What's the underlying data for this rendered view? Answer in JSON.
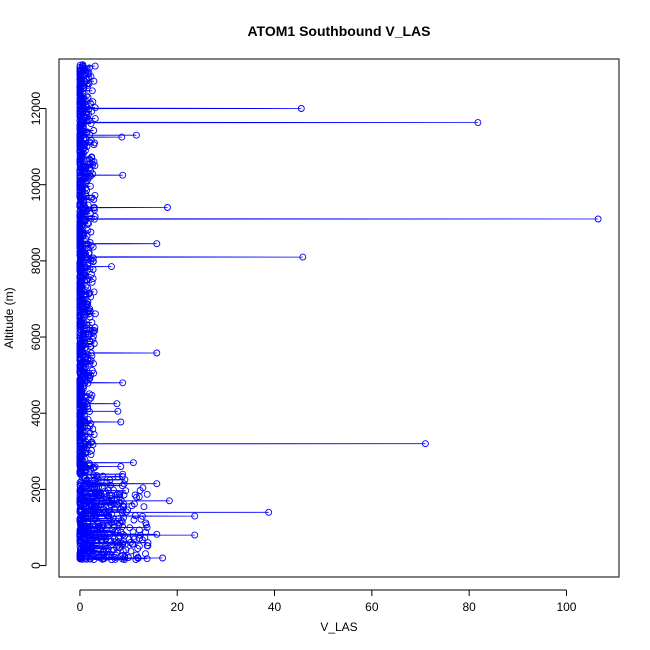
{
  "chart_data": {
    "type": "line",
    "title": "ATOM1 Southbound V_LAS",
    "xlabel": "V_LAS",
    "ylabel": "Altitude (m)",
    "xlim": [
      -4.3,
      110.8
    ],
    "ylim": [
      -300,
      13300
    ],
    "x_ticks": [
      0,
      20,
      40,
      60,
      80,
      100
    ],
    "y_ticks": [
      0,
      2000,
      4000,
      6000,
      8000,
      10000,
      12000
    ],
    "grid": false,
    "legend": "none",
    "marker": "open-circle",
    "colors": {
      "series": "#0000ff",
      "axis": "#000000",
      "background": "#ffffff"
    },
    "spikes": [
      {
        "x": 45.5,
        "y": 12000
      },
      {
        "x": 81.8,
        "y": 11630
      },
      {
        "x": 11.6,
        "y": 11300
      },
      {
        "x": 8.6,
        "y": 11250
      },
      {
        "x": 8.8,
        "y": 10250
      },
      {
        "x": 18.0,
        "y": 9400
      },
      {
        "x": 106.5,
        "y": 9100
      },
      {
        "x": 15.8,
        "y": 8450
      },
      {
        "x": 45.8,
        "y": 8100
      },
      {
        "x": 6.5,
        "y": 7850
      },
      {
        "x": 15.8,
        "y": 5580
      },
      {
        "x": 8.8,
        "y": 4800
      },
      {
        "x": 7.6,
        "y": 4250
      },
      {
        "x": 7.8,
        "y": 4050
      },
      {
        "x": 8.4,
        "y": 3770
      },
      {
        "x": 71.0,
        "y": 3200
      },
      {
        "x": 11.0,
        "y": 2700
      },
      {
        "x": 8.4,
        "y": 2600
      },
      {
        "x": 15.8,
        "y": 2150
      },
      {
        "x": 18.4,
        "y": 1700
      },
      {
        "x": 11.2,
        "y": 1620
      },
      {
        "x": 38.8,
        "y": 1400
      },
      {
        "x": 23.6,
        "y": 1300
      },
      {
        "x": 13.8,
        "y": 1000
      },
      {
        "x": 23.6,
        "y": 800
      },
      {
        "x": 15.8,
        "y": 820
      },
      {
        "x": 14.0,
        "y": 600
      },
      {
        "x": 17.0,
        "y": 200
      },
      {
        "x": 13.8,
        "y": 180
      }
    ]
  }
}
